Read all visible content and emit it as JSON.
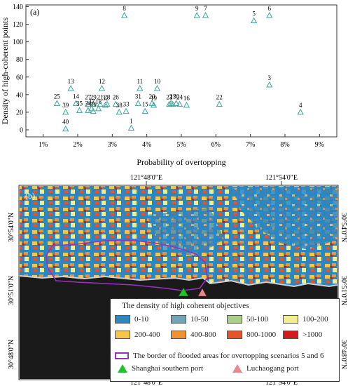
{
  "panel_a": {
    "label": "(a)",
    "chart_data": {
      "type": "scatter",
      "xlabel": "Probability of overtopping",
      "ylabel": "Density of high-coherent points",
      "xlim": [
        0.5,
        9.5
      ],
      "ylim": [
        -8,
        142
      ],
      "xticks": [
        "1%",
        "2%",
        "3%",
        "4%",
        "5%",
        "6%",
        "7%",
        "8%",
        "9%"
      ],
      "yticks": [
        "0",
        "20",
        "40",
        "60",
        "80",
        "100",
        "120",
        "140"
      ],
      "grid": false,
      "marker": "open triangle",
      "points": [
        {
          "label": "1",
          "x": 3.55,
          "y": 2
        },
        {
          "label": "2",
          "x": 4.7,
          "y": 30
        },
        {
          "label": "3",
          "x": 7.55,
          "y": 51
        },
        {
          "label": "4",
          "x": 8.45,
          "y": 20
        },
        {
          "label": "5",
          "x": 7.1,
          "y": 124
        },
        {
          "label": "6",
          "x": 7.55,
          "y": 130
        },
        {
          "label": "7",
          "x": 5.7,
          "y": 130
        },
        {
          "label": "8",
          "x": 3.35,
          "y": 130
        },
        {
          "label": "9",
          "x": 5.45,
          "y": 130
        },
        {
          "label": "10",
          "x": 4.3,
          "y": 47
        },
        {
          "label": "11",
          "x": 3.8,
          "y": 47
        },
        {
          "label": "12",
          "x": 2.7,
          "y": 47
        },
        {
          "label": "13",
          "x": 1.8,
          "y": 47
        },
        {
          "label": "14",
          "x": 1.95,
          "y": 30
        },
        {
          "label": "15",
          "x": 3.95,
          "y": 21
        },
        {
          "label": "16",
          "x": 5.15,
          "y": 28
        },
        {
          "label": "17",
          "x": 4.75,
          "y": 29
        },
        {
          "label": "18",
          "x": 2.6,
          "y": 24
        },
        {
          "label": "19",
          "x": 4.2,
          "y": 28
        },
        {
          "label": "20",
          "x": 4.15,
          "y": 30
        },
        {
          "label": "21",
          "x": 2.65,
          "y": 29
        },
        {
          "label": "22",
          "x": 6.1,
          "y": 29
        },
        {
          "label": "23",
          "x": 4.65,
          "y": 29
        },
        {
          "label": "24",
          "x": 4.95,
          "y": 29
        },
        {
          "label": "25",
          "x": 1.4,
          "y": 30
        },
        {
          "label": "26",
          "x": 3.1,
          "y": 29
        },
        {
          "label": "27",
          "x": 2.3,
          "y": 29
        },
        {
          "label": "28",
          "x": 2.85,
          "y": 29
        },
        {
          "label": "29",
          "x": 2.45,
          "y": 29
        },
        {
          "label": "30",
          "x": 4.85,
          "y": 30
        },
        {
          "label": "31",
          "x": 3.75,
          "y": 30
        },
        {
          "label": "32",
          "x": 2.8,
          "y": 28
        },
        {
          "label": "33",
          "x": 3.4,
          "y": 21
        },
        {
          "label": "34",
          "x": 2.3,
          "y": 22
        },
        {
          "label": "35",
          "x": 2.05,
          "y": 22
        },
        {
          "label": "36",
          "x": 2.45,
          "y": 21
        },
        {
          "label": "37",
          "x": 2.4,
          "y": 24
        },
        {
          "label": "38",
          "x": 3.2,
          "y": 20
        },
        {
          "label": "39",
          "x": 1.65,
          "y": 20
        },
        {
          "label": "40",
          "x": 1.65,
          "y": 1
        }
      ]
    }
  },
  "panel_b": {
    "label": "(b)",
    "lon_labels": [
      "121°48'0\"E",
      "121°54'0\"E"
    ],
    "lat_labels": [
      "30°54'0\"N",
      "30°51'0\"N",
      "30°48'0\"N"
    ],
    "legend": {
      "title": "The density of high coherent objectives",
      "items": [
        {
          "label": "0-10",
          "color": "#2b86c4"
        },
        {
          "label": "10-50",
          "color": "#6fa5b7"
        },
        {
          "label": "50-100",
          "color": "#a9cf8a"
        },
        {
          "label": "100-200",
          "color": "#f0ef8c"
        },
        {
          "label": "200-400",
          "color": "#f5c54c"
        },
        {
          "label": "400-800",
          "color": "#f29131"
        },
        {
          "label": "800-1000",
          "color": "#e65429"
        },
        {
          "label": ">1000",
          "color": "#d41b1b"
        }
      ],
      "border_label": "The border of flooded areas for overtopping scenarios 5 and 6",
      "border_color": "#9b30c0",
      "port1_label": "Shanghai southern port",
      "port1_color": "#22c02a",
      "port2_label": "Luchaogang port",
      "port2_color": "#e8888a"
    }
  }
}
